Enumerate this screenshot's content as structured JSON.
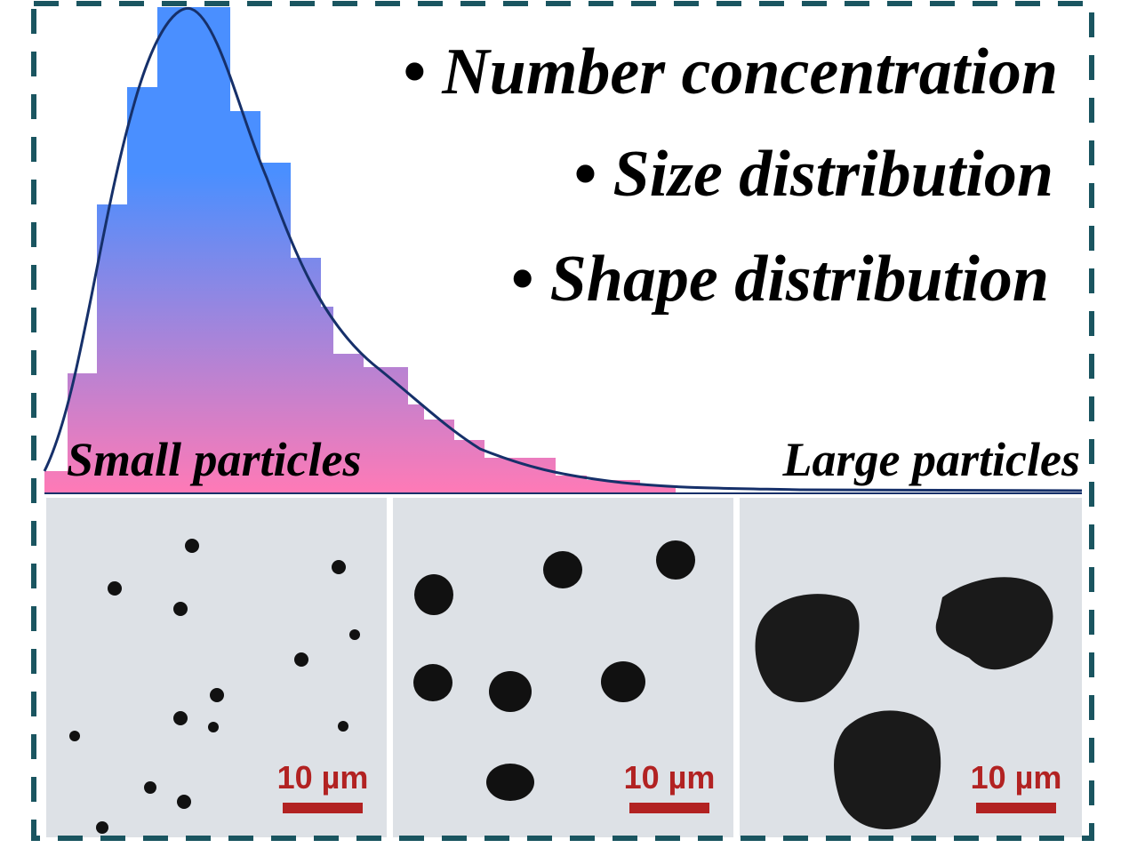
{
  "features": [
    "• Number concentration",
    "• Size distribution",
    "• Shape distribution"
  ],
  "labels": {
    "small": "Small particles",
    "large": "Large particles"
  },
  "scale_bars": [
    "10 µm",
    "10 µm",
    "10 µm"
  ]
}
